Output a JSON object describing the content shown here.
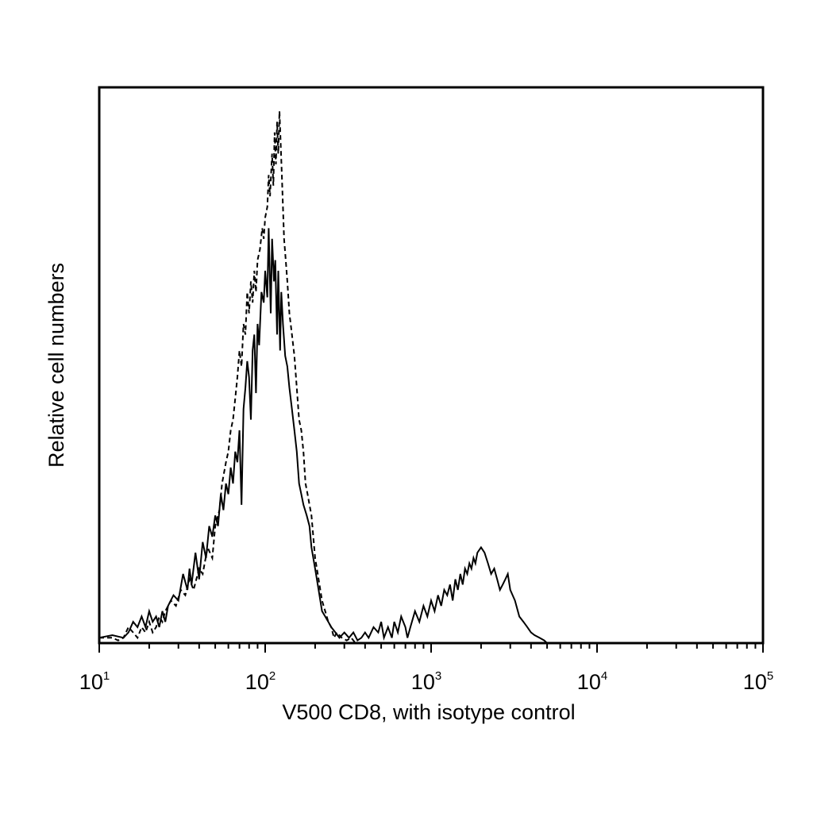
{
  "chart_data": {
    "type": "line",
    "xlabel": "V500 CD8, with isotype control",
    "ylabel": "Relative cell numbers",
    "xscale": "log",
    "xlim": [
      10,
      100000
    ],
    "ylim": [
      0,
      100
    ],
    "x_ticks": [
      {
        "value": 10,
        "base": "10",
        "exp": "1"
      },
      {
        "value": 100,
        "base": "10",
        "exp": "2"
      },
      {
        "value": 1000,
        "base": "10",
        "exp": "3"
      },
      {
        "value": 10000,
        "base": "10",
        "exp": "4"
      },
      {
        "value": 100000,
        "base": "10",
        "exp": "5"
      }
    ],
    "grid": false,
    "legend": "none",
    "series": [
      {
        "style": "solid",
        "color": "#000000",
        "points": [
          [
            10,
            1
          ],
          [
            12,
            1.5
          ],
          [
            14,
            1
          ],
          [
            15,
            2
          ],
          [
            16,
            4
          ],
          [
            17,
            3
          ],
          [
            18,
            5
          ],
          [
            19,
            3
          ],
          [
            20,
            6
          ],
          [
            21,
            4
          ],
          [
            22,
            5
          ],
          [
            23,
            3
          ],
          [
            24,
            6
          ],
          [
            25,
            4
          ],
          [
            26,
            7
          ],
          [
            28,
            9
          ],
          [
            30,
            8
          ],
          [
            32,
            13
          ],
          [
            34,
            10
          ],
          [
            35,
            14
          ],
          [
            36,
            11
          ],
          [
            38,
            17
          ],
          [
            40,
            12
          ],
          [
            42,
            19
          ],
          [
            44,
            16
          ],
          [
            46,
            22
          ],
          [
            48,
            20
          ],
          [
            50,
            24
          ],
          [
            52,
            22
          ],
          [
            54,
            28
          ],
          [
            56,
            25
          ],
          [
            58,
            30
          ],
          [
            60,
            28
          ],
          [
            62,
            33
          ],
          [
            64,
            30
          ],
          [
            66,
            36
          ],
          [
            68,
            34
          ],
          [
            70,
            40
          ],
          [
            72,
            26
          ],
          [
            74,
            44
          ],
          [
            76,
            48
          ],
          [
            78,
            53
          ],
          [
            80,
            50
          ],
          [
            82,
            42
          ],
          [
            84,
            55
          ],
          [
            86,
            58
          ],
          [
            88,
            47
          ],
          [
            90,
            60
          ],
          [
            92,
            56
          ],
          [
            95,
            66
          ],
          [
            98,
            64
          ],
          [
            100,
            70
          ],
          [
            103,
            65
          ],
          [
            105,
            78
          ],
          [
            108,
            62
          ],
          [
            110,
            76
          ],
          [
            113,
            68
          ],
          [
            115,
            72
          ],
          [
            118,
            58
          ],
          [
            120,
            70
          ],
          [
            123,
            55
          ],
          [
            125,
            66
          ],
          [
            128,
            60
          ],
          [
            132,
            54
          ],
          [
            136,
            52
          ],
          [
            140,
            48
          ],
          [
            145,
            44
          ],
          [
            150,
            40
          ],
          [
            155,
            36
          ],
          [
            160,
            30
          ],
          [
            165,
            28
          ],
          [
            170,
            26
          ],
          [
            178,
            24
          ],
          [
            185,
            22
          ],
          [
            190,
            18
          ],
          [
            195,
            16
          ],
          [
            200,
            14
          ],
          [
            210,
            10
          ],
          [
            220,
            6
          ],
          [
            230,
            5
          ],
          [
            240,
            4
          ],
          [
            250,
            3
          ],
          [
            265,
            2
          ],
          [
            280,
            1
          ],
          [
            300,
            2
          ],
          [
            320,
            1
          ],
          [
            340,
            2
          ],
          [
            360,
            0.5
          ],
          [
            380,
            1
          ],
          [
            400,
            2
          ],
          [
            420,
            1
          ],
          [
            450,
            3
          ],
          [
            480,
            2
          ],
          [
            500,
            4
          ],
          [
            520,
            1
          ],
          [
            550,
            3
          ],
          [
            580,
            1
          ],
          [
            600,
            4
          ],
          [
            630,
            2
          ],
          [
            660,
            5
          ],
          [
            700,
            3
          ],
          [
            720,
            1
          ],
          [
            750,
            3
          ],
          [
            800,
            6
          ],
          [
            850,
            4
          ],
          [
            900,
            7
          ],
          [
            950,
            5
          ],
          [
            1000,
            8
          ],
          [
            1050,
            6
          ],
          [
            1100,
            9
          ],
          [
            1150,
            7
          ],
          [
            1200,
            10
          ],
          [
            1250,
            9
          ],
          [
            1300,
            11
          ],
          [
            1350,
            8
          ],
          [
            1400,
            12
          ],
          [
            1450,
            10
          ],
          [
            1500,
            13
          ],
          [
            1550,
            11
          ],
          [
            1600,
            14
          ],
          [
            1650,
            13
          ],
          [
            1700,
            15
          ],
          [
            1750,
            14
          ],
          [
            1800,
            16
          ],
          [
            1850,
            15
          ],
          [
            1900,
            17
          ],
          [
            2000,
            18
          ],
          [
            2100,
            17
          ],
          [
            2200,
            15
          ],
          [
            2300,
            13
          ],
          [
            2400,
            14
          ],
          [
            2500,
            12
          ],
          [
            2600,
            10
          ],
          [
            2700,
            11
          ],
          [
            2800,
            12
          ],
          [
            2900,
            13
          ],
          [
            3000,
            10
          ],
          [
            3200,
            8
          ],
          [
            3400,
            5
          ],
          [
            3600,
            4
          ],
          [
            3800,
            3
          ],
          [
            4000,
            2
          ],
          [
            4200,
            1.5
          ],
          [
            4500,
            1
          ],
          [
            4800,
            0.5
          ],
          [
            5000,
            0
          ],
          [
            100000,
            0
          ]
        ]
      },
      {
        "style": "dashed",
        "color": "#000000",
        "points": [
          [
            10,
            1
          ],
          [
            12,
            1
          ],
          [
            13,
            0.5
          ],
          [
            14,
            1
          ],
          [
            15,
            3
          ],
          [
            16,
            2
          ],
          [
            17,
            1
          ],
          [
            18,
            3
          ],
          [
            19,
            2
          ],
          [
            20,
            4
          ],
          [
            21,
            2
          ],
          [
            22,
            3
          ],
          [
            23,
            5
          ],
          [
            24,
            4
          ],
          [
            25,
            6
          ],
          [
            27,
            8
          ],
          [
            29,
            7
          ],
          [
            31,
            10
          ],
          [
            33,
            9
          ],
          [
            35,
            12
          ],
          [
            37,
            10
          ],
          [
            40,
            14
          ],
          [
            42,
            13
          ],
          [
            45,
            18
          ],
          [
            48,
            16
          ],
          [
            50,
            22
          ],
          [
            53,
            25
          ],
          [
            55,
            30
          ],
          [
            58,
            34
          ],
          [
            60,
            36
          ],
          [
            62,
            40
          ],
          [
            64,
            42
          ],
          [
            66,
            46
          ],
          [
            68,
            50
          ],
          [
            70,
            55
          ],
          [
            72,
            52
          ],
          [
            74,
            60
          ],
          [
            76,
            58
          ],
          [
            78,
            66
          ],
          [
            80,
            62
          ],
          [
            82,
            68
          ],
          [
            84,
            64
          ],
          [
            86,
            70
          ],
          [
            88,
            66
          ],
          [
            90,
            72
          ],
          [
            93,
            74
          ],
          [
            96,
            78
          ],
          [
            98,
            76
          ],
          [
            100,
            80
          ],
          [
            103,
            82
          ],
          [
            105,
            88
          ],
          [
            107,
            84
          ],
          [
            110,
            92
          ],
          [
            112,
            86
          ],
          [
            114,
            96
          ],
          [
            116,
            90
          ],
          [
            118,
            98
          ],
          [
            120,
            92
          ],
          [
            122,
            100
          ],
          [
            124,
            94
          ],
          [
            126,
            88
          ],
          [
            128,
            82
          ],
          [
            130,
            76
          ],
          [
            133,
            72
          ],
          [
            136,
            68
          ],
          [
            140,
            62
          ],
          [
            145,
            58
          ],
          [
            150,
            54
          ],
          [
            155,
            48
          ],
          [
            160,
            42
          ],
          [
            165,
            40
          ],
          [
            170,
            36
          ],
          [
            175,
            30
          ],
          [
            180,
            28
          ],
          [
            185,
            26
          ],
          [
            190,
            24
          ],
          [
            195,
            20
          ],
          [
            200,
            16
          ],
          [
            210,
            12
          ],
          [
            220,
            8
          ],
          [
            230,
            6
          ],
          [
            240,
            4
          ],
          [
            250,
            3
          ],
          [
            260,
            1
          ],
          [
            270,
            2
          ],
          [
            290,
            1
          ],
          [
            310,
            0.5
          ],
          [
            330,
            1
          ],
          [
            350,
            0
          ],
          [
            100000,
            0
          ]
        ]
      }
    ]
  }
}
